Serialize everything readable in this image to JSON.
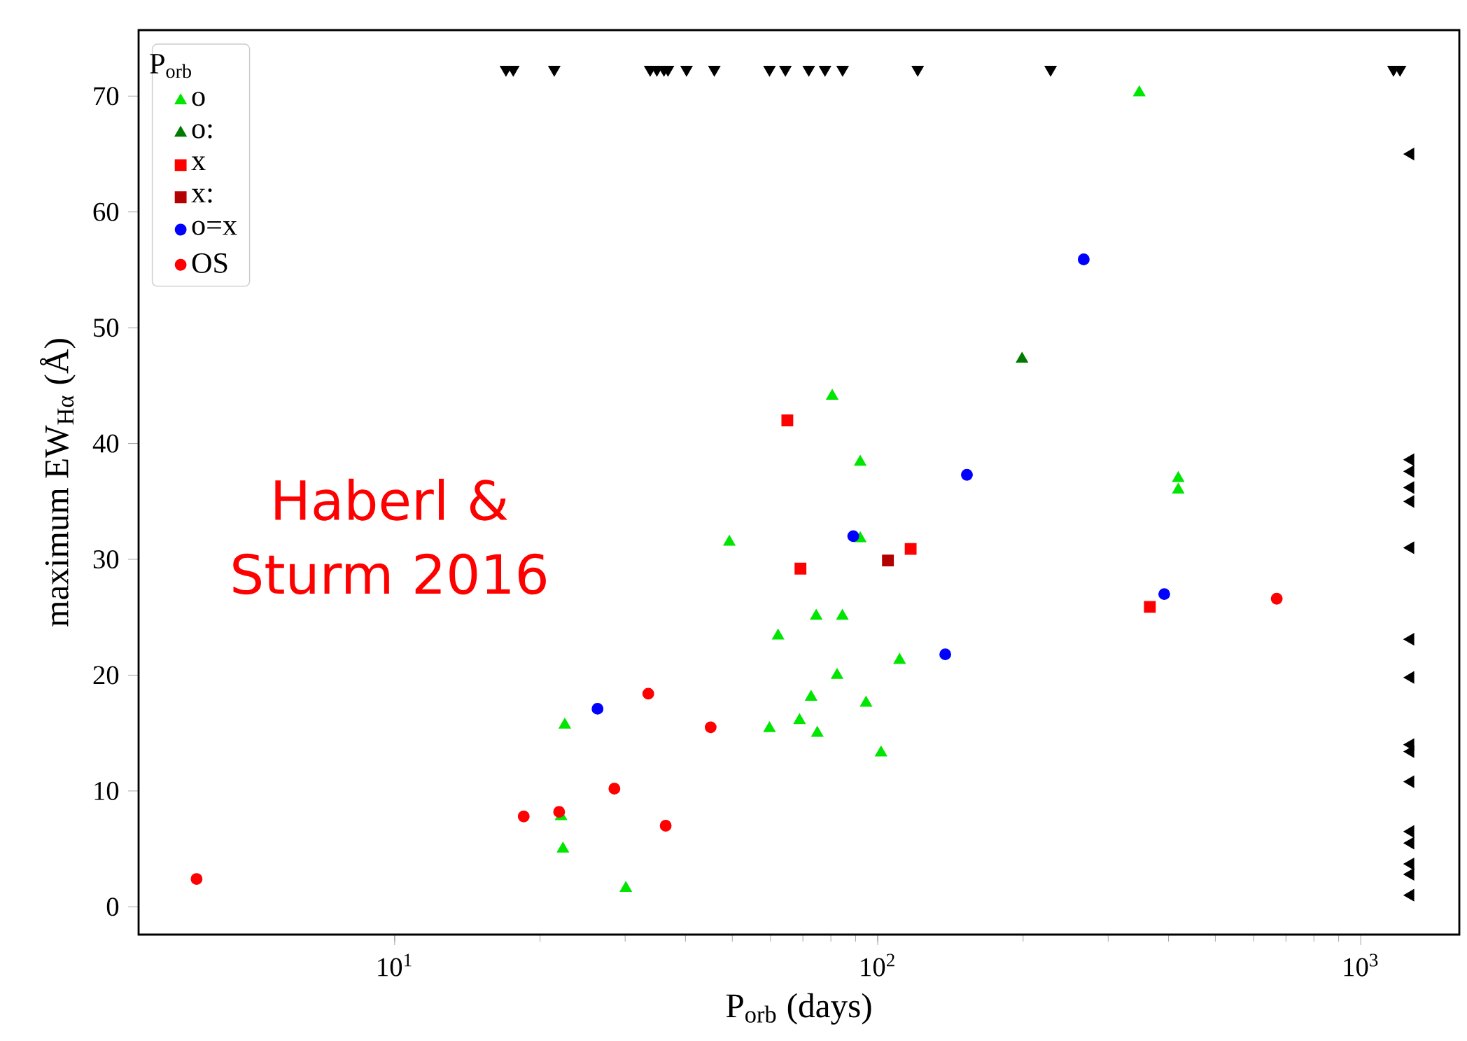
{
  "chart_data": {
    "type": "scatter",
    "xlabel": "P$_{orb}$ (days)",
    "ylabel": "maximum EW$_{Hα}$ (Å)",
    "legend_title": "P$_{orb}$",
    "log": "x",
    "xlim": [
      2.95,
      1600
    ],
    "ylim": [
      -2.4,
      75.7
    ],
    "xticks": [
      {
        "value": 10,
        "label": "10$^{1}$"
      },
      {
        "value": 100,
        "label": "10$^{2}$"
      },
      {
        "value": 1000,
        "label": "10$^{3}$"
      }
    ],
    "yticks": [
      0,
      10,
      20,
      30,
      40,
      50,
      60,
      70
    ],
    "legend": "top left",
    "annotations": [
      "Haberl & Sturm 2016"
    ],
    "series": [
      {
        "name": "o",
        "color": "#00e600",
        "marker": "triangle",
        "x": [
          348,
          80.5,
          92,
          419,
          419,
          49.3,
          92,
          62.2,
          74.6,
          84.5,
          111,
          82.4,
          72.8,
          94.6,
          59.7,
          68.9,
          75.0,
          101.6,
          22.5,
          22.1,
          22.3,
          30.1
        ],
        "values": [
          70.3,
          44.1,
          38.4,
          37.0,
          36.0,
          31.5,
          31.8,
          23.4,
          25.1,
          25.1,
          21.3,
          20.0,
          18.1,
          17.6,
          15.4,
          16.1,
          15.0,
          13.3,
          15.7,
          7.8,
          5.0,
          1.6
        ]
      },
      {
        "name": "o:",
        "color": "#007a00",
        "marker": "triangle",
        "x": [
          199
        ],
        "values": [
          47.3
        ]
      },
      {
        "name": "x",
        "color": "#ff0000",
        "marker": "square",
        "x": [
          65.0,
          69.2,
          117,
          366
        ],
        "values": [
          42.0,
          29.2,
          30.9,
          25.9
        ]
      },
      {
        "name": "x:",
        "color": "#b30000",
        "marker": "square",
        "x": [
          105
        ],
        "values": [
          29.9
        ]
      },
      {
        "name": "o=x",
        "color": "#0000ff",
        "marker": "circle",
        "x": [
          267,
          153,
          89,
          392,
          138,
          26.3
        ],
        "values": [
          55.9,
          37.3,
          32.0,
          27.0,
          21.8,
          17.1
        ]
      },
      {
        "name": "OS",
        "color": "#ff0000",
        "marker": "circle",
        "x": [
          670,
          33.5,
          45.1,
          28.5,
          18.5,
          21.9,
          36.4,
          3.89
        ],
        "values": [
          26.6,
          18.4,
          15.5,
          10.2,
          7.8,
          8.2,
          7.0,
          2.4
        ]
      },
      {
        "color": "#000000",
        "marker": "triangle",
        "x": [
          17.0,
          17.6,
          21.4,
          33.8,
          34.9,
          36.1,
          36.8,
          40.2,
          45.9,
          59.7,
          64.4,
          72.0,
          77.8,
          84.6,
          121,
          228,
          1169,
          1206
        ],
        "values": [
          72.3,
          72.3,
          72.3,
          72.3,
          72.3,
          72.3,
          72.3,
          72.3,
          72.3,
          72.3,
          72.3,
          72.3,
          72.3,
          72.3,
          72.3,
          72.3,
          72.3,
          72.3
        ]
      },
      {
        "color": "#000000",
        "marker": "triangle",
        "x": [
          1268,
          1268,
          1268,
          1268,
          1268,
          1268,
          1268,
          1268,
          1268,
          1268,
          1268,
          1268,
          1268,
          1268,
          1268,
          1268
        ],
        "values": [
          65.0,
          38.6,
          37.6,
          36.2,
          35.0,
          31.0,
          23.1,
          19.8,
          14.0,
          13.4,
          10.8,
          6.5,
          5.5,
          3.7,
          2.8,
          1.0
        ]
      }
    ]
  }
}
